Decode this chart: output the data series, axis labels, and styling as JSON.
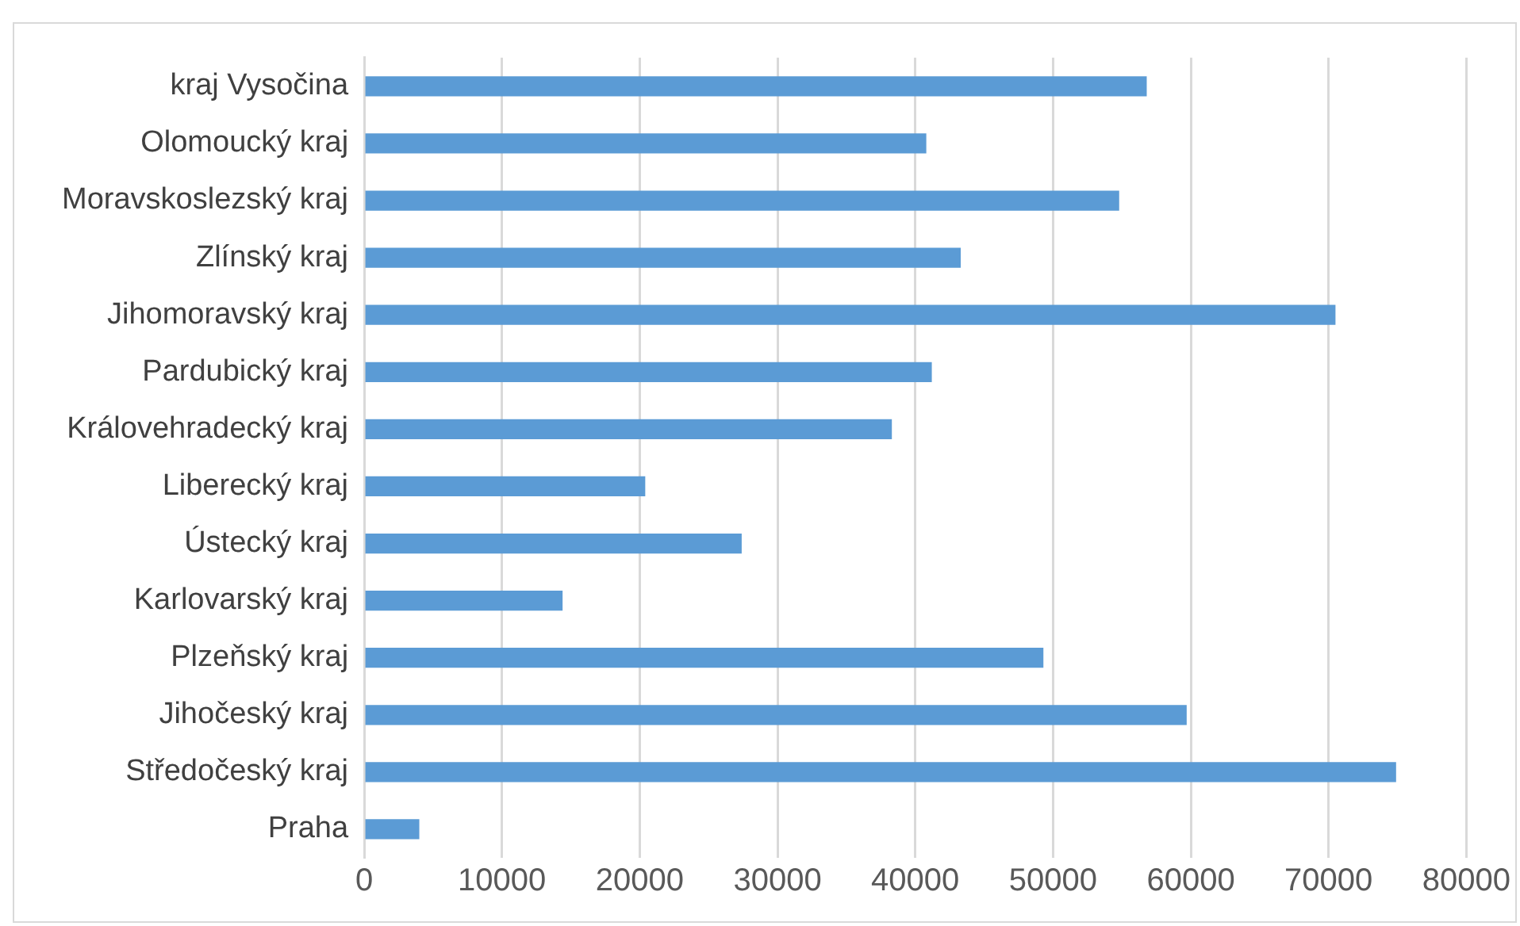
{
  "chart_data": {
    "type": "bar",
    "orientation": "horizontal",
    "categories": [
      "kraj Vysočina",
      "Olomoucký kraj",
      "Moravskoslezský kraj",
      "Zlínský kraj",
      "Jihomoravský kraj",
      "Pardubický kraj",
      "Královehradecký kraj",
      "Liberecký kraj",
      "Ústecký kraj",
      "Karlovarský kraj",
      "Plzeňský kraj",
      "Jihočeský kraj",
      "Středočeský kraj",
      "Praha"
    ],
    "values": [
      56800,
      40800,
      54800,
      43300,
      70500,
      41200,
      38300,
      20400,
      27400,
      14400,
      49300,
      59700,
      74900,
      4000
    ],
    "color": "#5b9bd5",
    "xlim": [
      0,
      80000
    ],
    "xticks": [
      0,
      10000,
      20000,
      30000,
      40000,
      50000,
      60000,
      70000,
      80000
    ],
    "grid": "x",
    "legend": false
  }
}
